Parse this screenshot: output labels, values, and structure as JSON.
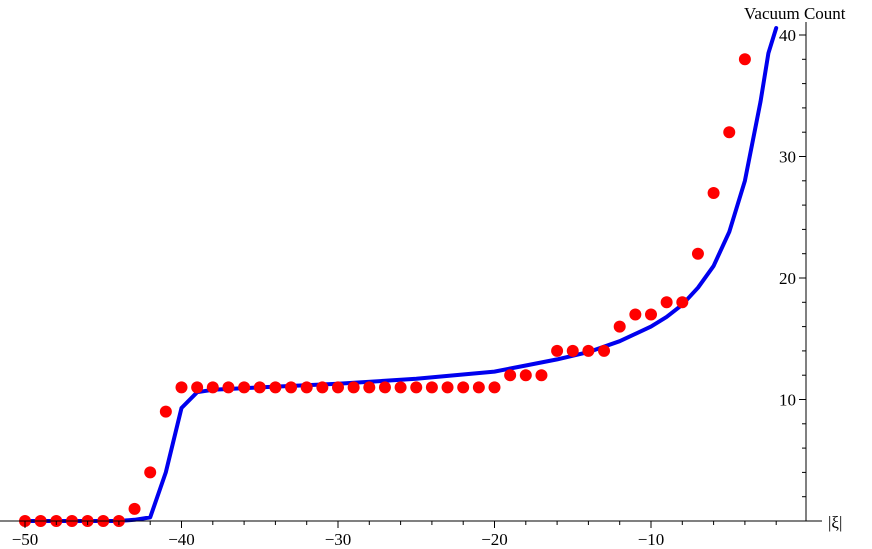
{
  "chart_data": {
    "type": "scatter",
    "title": "",
    "xlabel": "|ξ|",
    "ylabel": "Vacuum Count",
    "xlim": [
      -50.5,
      -0.5
    ],
    "ylim": [
      0,
      41
    ],
    "x_ticks": [
      -50,
      -40,
      -30,
      -20,
      -10
    ],
    "x_tick_labels": [
      "−50",
      "−40",
      "−30",
      "−20",
      "−10"
    ],
    "y_ticks": [
      10,
      20,
      30,
      40
    ],
    "y_tick_labels": [
      "10",
      "20",
      "30",
      "40"
    ],
    "grid": false,
    "colors": {
      "points": "#ff0000",
      "line": "#0000ee",
      "axis": "#000000"
    },
    "series": [
      {
        "kind": "points",
        "x": [
          -50,
          -49,
          -48,
          -47,
          -46,
          -45,
          -44,
          -43,
          -42,
          -41,
          -40,
          -39,
          -38,
          -37,
          -36,
          -35,
          -34,
          -33,
          -32,
          -31,
          -30,
          -29,
          -28,
          -27,
          -26,
          -25,
          -24,
          -23,
          -22,
          -21,
          -20,
          -19,
          -18,
          -17,
          -16,
          -15,
          -14,
          -13,
          -12,
          -11,
          -10,
          -9,
          -8,
          -7,
          -6,
          -5,
          -4
        ],
        "y": [
          0,
          0,
          0,
          0,
          0,
          0,
          0,
          1,
          4,
          9,
          11,
          11,
          11,
          11,
          11,
          11,
          11,
          11,
          11,
          11,
          11,
          11,
          11,
          11,
          11,
          11,
          11,
          11,
          11,
          11,
          11,
          12,
          12,
          12,
          14,
          14,
          14,
          14,
          16,
          17,
          17,
          18,
          18,
          22,
          27,
          32,
          38
        ]
      },
      {
        "kind": "line",
        "x": [
          -50,
          -46,
          -44,
          -43,
          -42,
          -41,
          -40,
          -39,
          -38,
          -35,
          -30,
          -25,
          -20,
          -18,
          -16,
          -14,
          -12,
          -10,
          -9,
          -8,
          -7,
          -6,
          -5,
          -4,
          -3,
          -2.5,
          -2
        ],
        "y": [
          0,
          0,
          0,
          0.1,
          0.3,
          4,
          9.3,
          10.6,
          10.8,
          11,
          11.3,
          11.7,
          12.3,
          12.8,
          13.3,
          13.9,
          14.8,
          16,
          16.8,
          17.8,
          19.2,
          21,
          23.8,
          28,
          34.5,
          38.5,
          42
        ]
      }
    ]
  }
}
